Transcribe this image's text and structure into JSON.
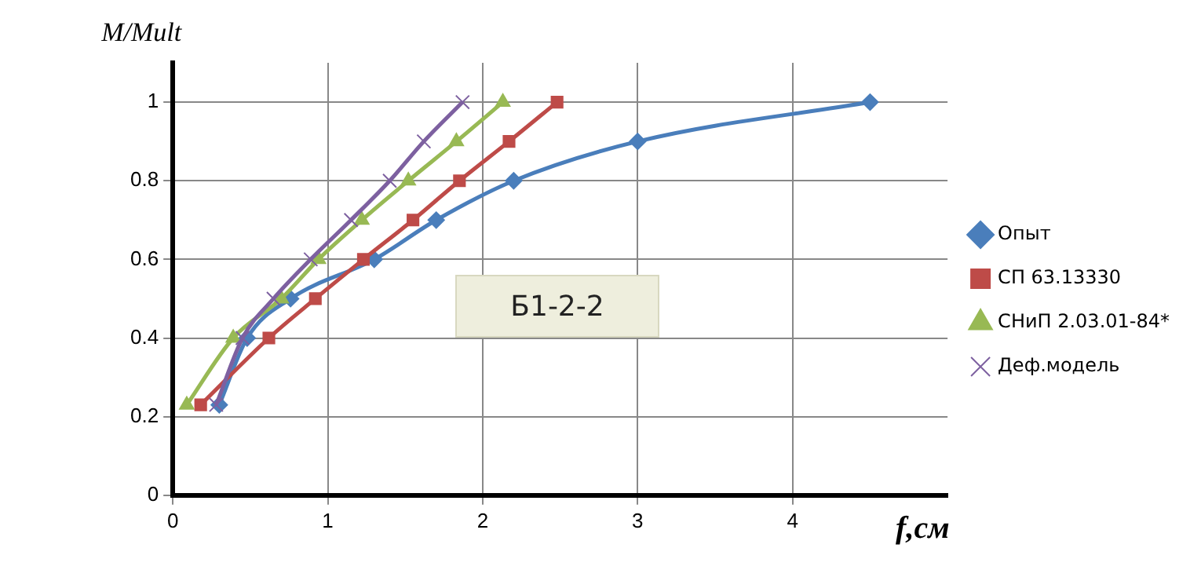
{
  "chart_data": {
    "type": "line",
    "ylabel": "M/Mult",
    "xlabel": "f,см",
    "annotations": [
      "Б1-2-2"
    ],
    "xlim": [
      0,
      5
    ],
    "xticks": [
      0,
      1,
      2,
      3,
      4
    ],
    "ylim": [
      0,
      1.1
    ],
    "yticks": [
      0,
      0.2,
      0.4,
      0.6,
      0.8,
      1
    ],
    "grid": true,
    "legend": "right",
    "series": [
      {
        "name": "Опыт",
        "color": "#4a7ebb",
        "marker": "diamond",
        "x": [
          0.3,
          0.48,
          0.76,
          1.3,
          1.7,
          2.2,
          3.0,
          4.5
        ],
        "values": [
          0.23,
          0.4,
          0.5,
          0.6,
          0.7,
          0.8,
          0.9,
          1
        ]
      },
      {
        "name": "СП 63.13330",
        "color": "#be4b48",
        "marker": "square",
        "x": [
          0.18,
          0.62,
          0.92,
          1.23,
          1.55,
          1.85,
          2.17,
          2.48
        ],
        "values": [
          0.23,
          0.4,
          0.5,
          0.6,
          0.7,
          0.8,
          0.9,
          1
        ]
      },
      {
        "name": "СНиП 2.03.01-84*",
        "color": "#98b954",
        "marker": "triangle",
        "x": [
          0.09,
          0.39,
          0.7,
          0.94,
          1.22,
          1.52,
          1.83,
          2.13
        ],
        "values": [
          0.23,
          0.4,
          0.5,
          0.6,
          0.7,
          0.8,
          0.9,
          1
        ]
      },
      {
        "name": "Деф.модель",
        "color": "#7d60a0",
        "marker": "cross",
        "x": [
          0.28,
          0.45,
          0.65,
          0.89,
          1.15,
          1.4,
          1.62,
          1.87
        ],
        "values": [
          0.23,
          0.4,
          0.5,
          0.6,
          0.7,
          0.8,
          0.9,
          1
        ]
      }
    ]
  }
}
